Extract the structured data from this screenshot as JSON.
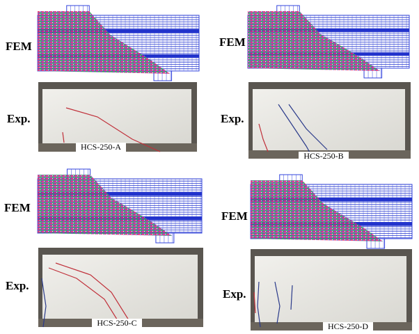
{
  "panels": [
    {
      "fem_label": "FEM",
      "exp_label": "Exp.",
      "caption": "HCS-250-A"
    },
    {
      "fem_label": "FEM",
      "exp_label": "Exp.",
      "caption": "HCS-250-B"
    },
    {
      "fem_label": "FEM",
      "exp_label": "Exp.",
      "caption": "HCS-250-C"
    },
    {
      "fem_label": "FEM",
      "exp_label": "Exp.",
      "caption": "HCS-250-D"
    }
  ]
}
